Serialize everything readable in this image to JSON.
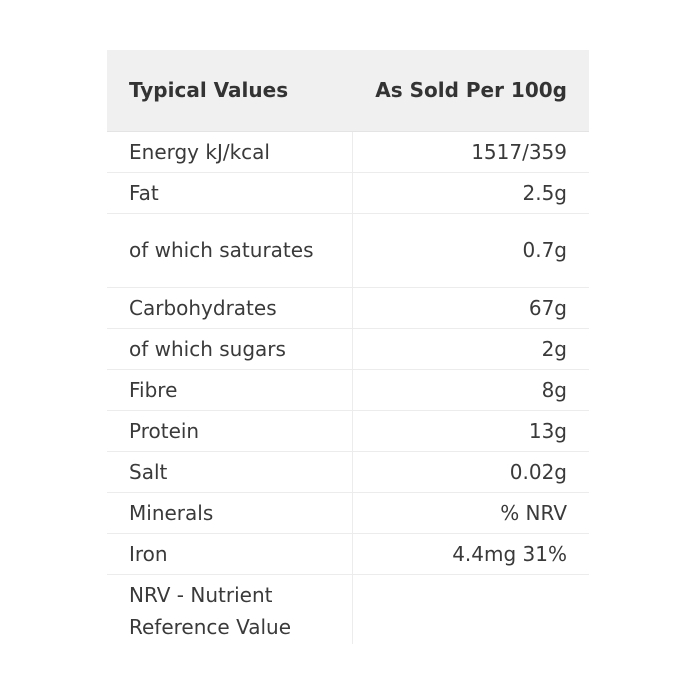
{
  "table": {
    "header": {
      "label": "Typical Values",
      "value": "As Sold Per 100g"
    },
    "rows": [
      {
        "name": "Energy kJ/kcal",
        "value": "1517/359"
      },
      {
        "name": "Fat",
        "value": "2.5g"
      },
      {
        "name": "of which saturates",
        "value": "0.7g"
      },
      {
        "name": "Carbohydrates",
        "value": "67g"
      },
      {
        "name": "of which sugars",
        "value": "2g"
      },
      {
        "name": "Fibre",
        "value": "8g"
      },
      {
        "name": "Protein",
        "value": "13g"
      },
      {
        "name": "Salt",
        "value": "0.02g"
      },
      {
        "name": "Minerals",
        "value": "% NRV"
      },
      {
        "name": "Iron",
        "value": "4.4mg 31%"
      },
      {
        "name": "NRV - Nutrient Reference Value",
        "value": ""
      }
    ]
  }
}
